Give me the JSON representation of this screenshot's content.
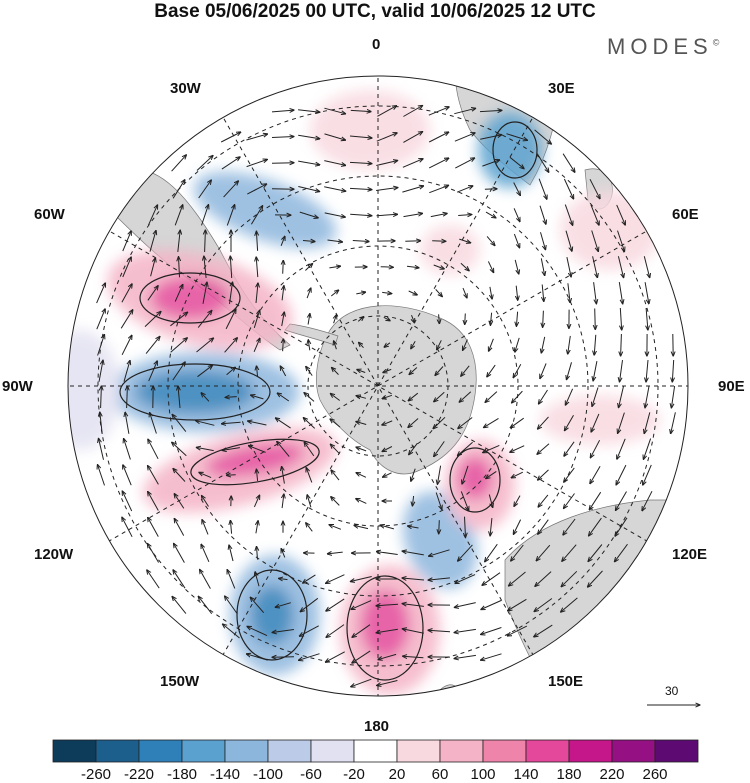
{
  "title": "Base 05/06/2025 00 UTC, valid 10/06/2025 12 UTC",
  "brand": "MODES",
  "brand_mark": "©",
  "longitude_labels": {
    "n": "0",
    "ne30": "30E",
    "ne60": "60E",
    "e": "90E",
    "se120": "120E",
    "se150": "150E",
    "s": "180",
    "sw150": "150W",
    "sw120": "120W",
    "w": "90W",
    "nw60": "60W",
    "nw30": "30W"
  },
  "reference_vector": {
    "label": "30"
  },
  "colorbar": {
    "colors": [
      "#0d3b5a",
      "#1c5f8d",
      "#2f7fb8",
      "#5aa1cf",
      "#8db6dd",
      "#bccbe7",
      "#e2e1f1",
      "#ffffff",
      "#f8d9e0",
      "#f4b3c6",
      "#ef84ab",
      "#e3489a",
      "#c5168a",
      "#951082",
      "#5d0a73"
    ],
    "tick_labels": [
      "-260",
      "-220",
      "-180",
      "-140",
      "-100",
      "-60",
      "-20",
      "20",
      "60",
      "100",
      "140",
      "180",
      "220",
      "260"
    ]
  },
  "colors": {
    "land": "#d9d9d9",
    "positive": "#e3489a",
    "negative": "#2f7fb8"
  }
}
